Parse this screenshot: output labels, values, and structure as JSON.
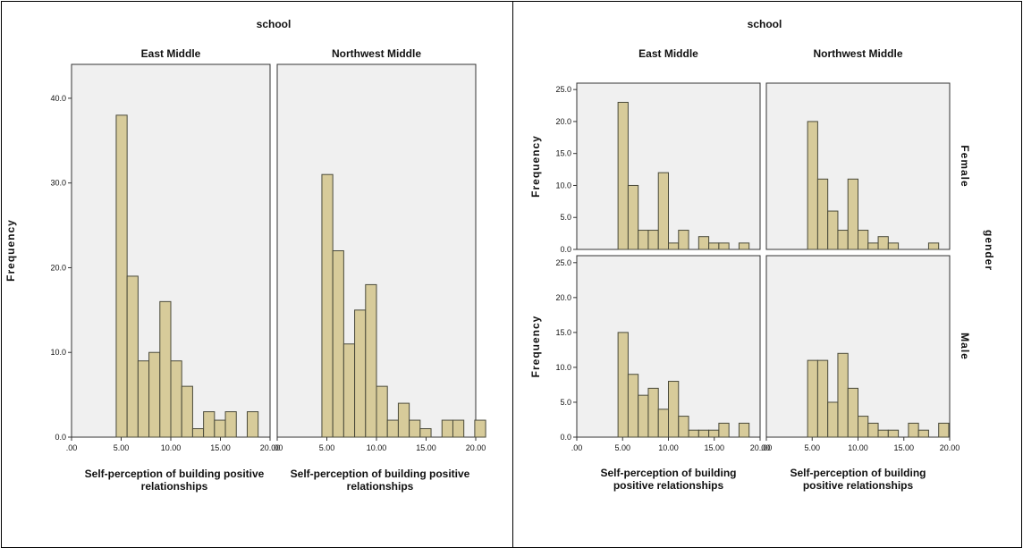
{
  "colors": {
    "bar_fill": "#d7cb9a",
    "bar_stroke": "#4a4a3a",
    "panel_bg": "#f0f0f0"
  },
  "chart_data": [
    {
      "type": "bar",
      "title": "school",
      "xlabel": "Self-perception of building positive relationships",
      "ylabel": "Frequency",
      "x_ticks": [
        ".00",
        "5.00",
        "10.00",
        "15.00",
        "20.00"
      ],
      "y_ticks": [
        "0.0",
        "10.0",
        "20.0",
        "30.0",
        "40.0"
      ],
      "xlim": [
        0,
        20
      ],
      "ylim": [
        0,
        44
      ],
      "bin_start": 4.5,
      "bin_width": 1.1,
      "panels": [
        {
          "column": "East Middle",
          "values": [
            38,
            19,
            9,
            10,
            16,
            9,
            6,
            1,
            3,
            2,
            3,
            0,
            3
          ]
        },
        {
          "column": "Northwest Middle",
          "values": [
            31,
            22,
            11,
            15,
            18,
            6,
            2,
            4,
            2,
            1,
            0,
            2,
            2,
            0,
            2
          ]
        }
      ]
    },
    {
      "type": "bar",
      "title": "school",
      "row_title": "gender",
      "xlabel": "Self-perception of building positive relationships",
      "ylabel": "Frequency",
      "x_ticks": [
        ".00",
        "5.00",
        "10.00",
        "15.00",
        "20.00"
      ],
      "y_ticks": [
        "0.0",
        "5.0",
        "10.0",
        "15.0",
        "20.0",
        "25.0"
      ],
      "xlim": [
        0,
        20
      ],
      "ylim": [
        0,
        26
      ],
      "bin_start": 4.5,
      "bin_width": 1.1,
      "panels": [
        {
          "column": "East Middle",
          "row": "Female",
          "values": [
            23,
            10,
            3,
            3,
            12,
            1,
            3,
            0,
            2,
            1,
            1,
            0,
            1
          ]
        },
        {
          "column": "Northwest Middle",
          "row": "Female",
          "values": [
            20,
            11,
            6,
            3,
            11,
            3,
            1,
            2,
            1,
            0,
            0,
            0,
            1
          ]
        },
        {
          "column": "East Middle",
          "row": "Male",
          "values": [
            15,
            9,
            6,
            7,
            4,
            8,
            3,
            1,
            1,
            1,
            2,
            0,
            2
          ]
        },
        {
          "column": "Northwest Middle",
          "row": "Male",
          "values": [
            11,
            11,
            5,
            12,
            7,
            3,
            2,
            1,
            1,
            0,
            2,
            1,
            0,
            2
          ]
        }
      ]
    }
  ]
}
